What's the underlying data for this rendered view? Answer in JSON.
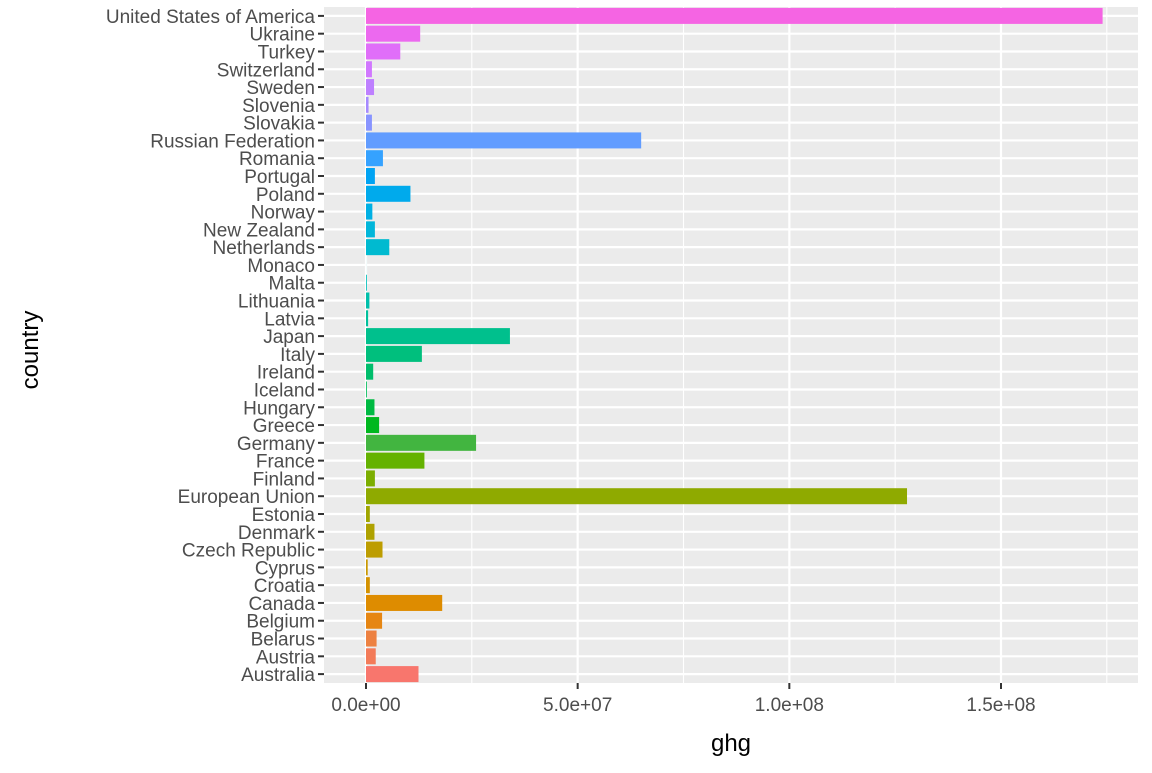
{
  "chart_data": {
    "type": "bar",
    "orientation": "horizontal",
    "xlabel": "ghg",
    "ylabel": "country",
    "xlim": [
      -10000000,
      182000000
    ],
    "xticks": [
      {
        "value": 0,
        "label": "0.0e+00"
      },
      {
        "value": 50000000,
        "label": "5.0e+07"
      },
      {
        "value": 100000000,
        "label": "1.0e+08"
      },
      {
        "value": 150000000,
        "label": "1.5e+08"
      }
    ],
    "x_minor_ticks": [
      25000000,
      75000000,
      125000000,
      175000000
    ],
    "grid": true,
    "legend": "none",
    "categories": [
      "Australia",
      "Austria",
      "Belarus",
      "Belgium",
      "Canada",
      "Croatia",
      "Cyprus",
      "Czech Republic",
      "Denmark",
      "Estonia",
      "European Union",
      "Finland",
      "France",
      "Germany",
      "Greece",
      "Hungary",
      "Iceland",
      "Ireland",
      "Italy",
      "Japan",
      "Latvia",
      "Lithuania",
      "Malta",
      "Monaco",
      "Netherlands",
      "New Zealand",
      "Norway",
      "Poland",
      "Portugal",
      "Romania",
      "Russian Federation",
      "Slovakia",
      "Slovenia",
      "Sweden",
      "Switzerland",
      "Turkey",
      "Ukraine",
      "United States of America"
    ],
    "values": [
      12400000,
      2300000,
      2500000,
      3800000,
      18000000,
      900000,
      400000,
      3900000,
      2000000,
      900000,
      127800000,
      2100000,
      13800000,
      26000000,
      3100000,
      2000000,
      200000,
      1700000,
      13200000,
      34000000,
      500000,
      800000,
      200000,
      10000,
      5500000,
      2100000,
      1500000,
      10500000,
      2100000,
      4000000,
      65000000,
      1400000,
      600000,
      1900000,
      1400000,
      8100000,
      12800000,
      174000000
    ],
    "colors": [
      "#F8766D",
      "#F37B59",
      "#ED8141",
      "#E68613",
      "#DE8C00",
      "#D49200",
      "#C99800",
      "#BD9D00",
      "#AFA200",
      "#A0A600",
      "#8FAA00",
      "#7CAE00",
      "#64B200",
      "#42B540",
      "#00B81F",
      "#00BA42",
      "#00BC59",
      "#00BE6C",
      "#00BF7D",
      "#00C08D",
      "#00C19C",
      "#00C0AB",
      "#00BFB9",
      "#00BDC5",
      "#00BAD0",
      "#00B6DA",
      "#00B0E4",
      "#00AAEC",
      "#00A3F3",
      "#35A2FF",
      "#619CFF",
      "#8894FF",
      "#A68AFF",
      "#BE80FF",
      "#D177FF",
      "#E06EF9",
      "#EC69EF",
      "#F564E3"
    ],
    "color_order_note": "colors listed for categories in the same order"
  }
}
